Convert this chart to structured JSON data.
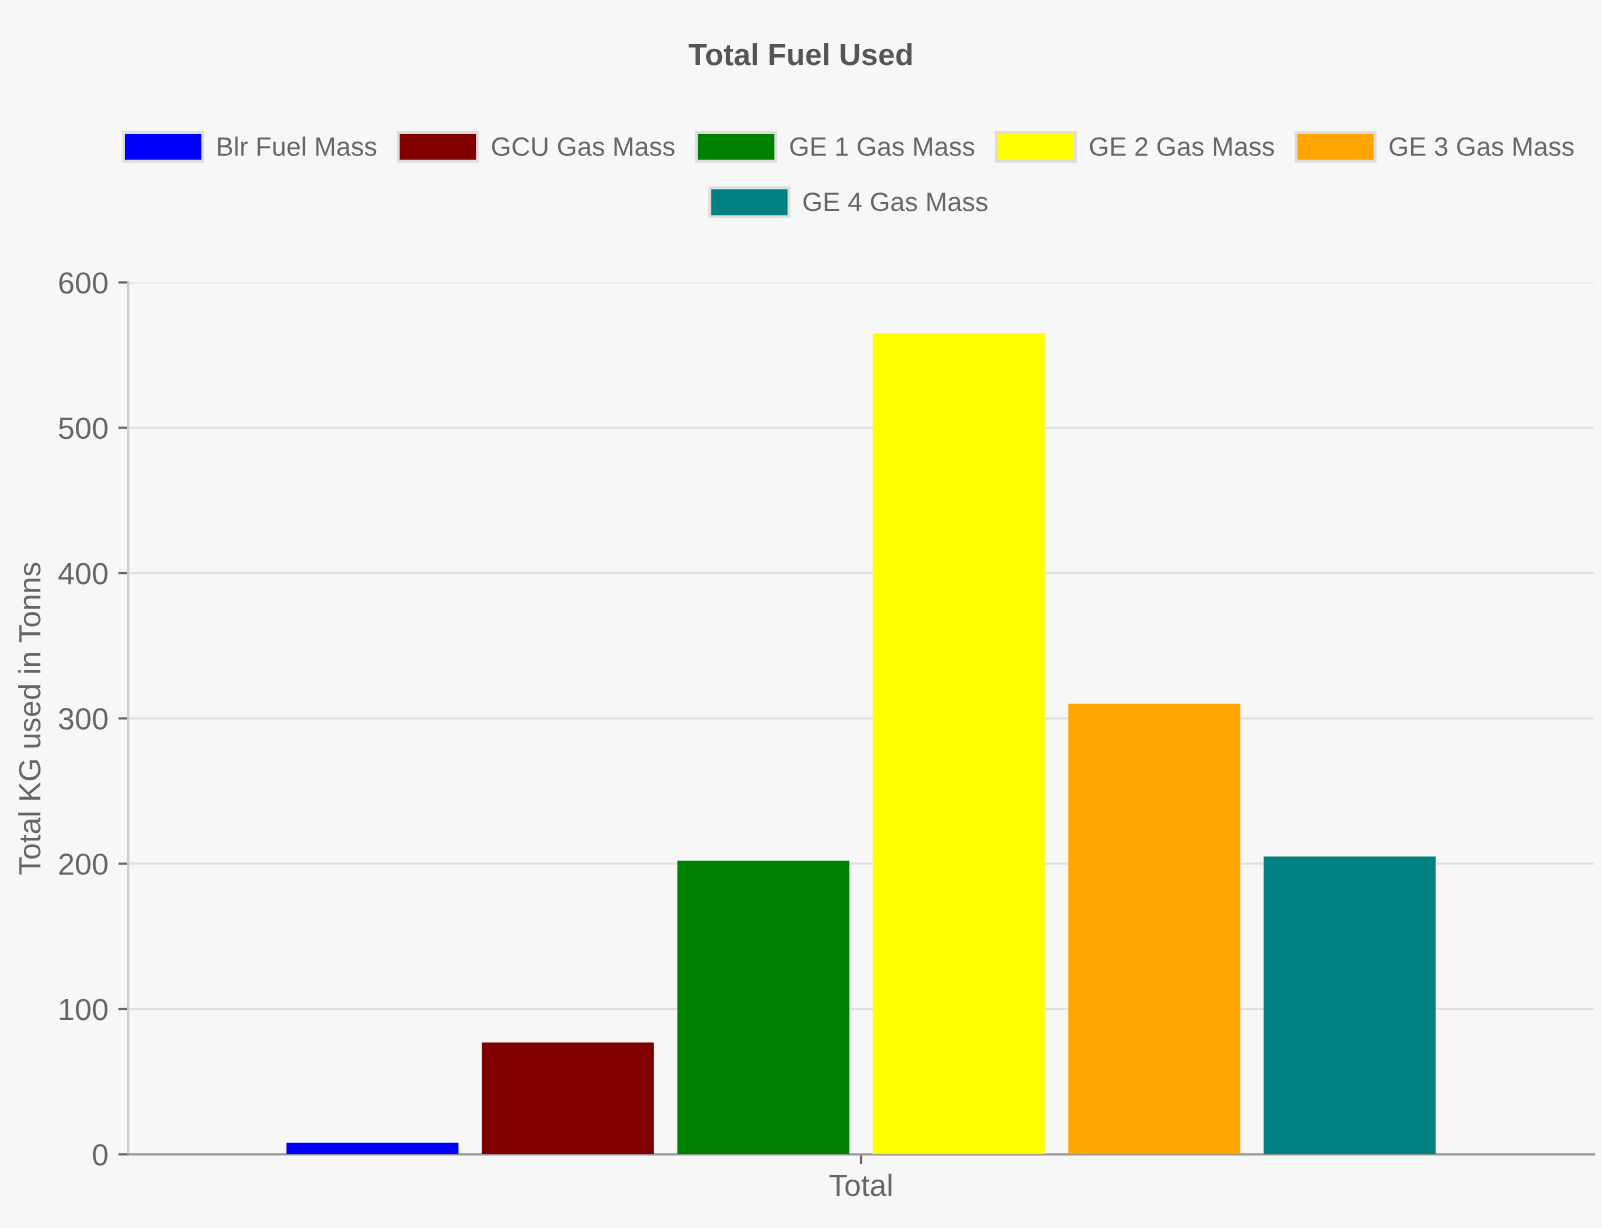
{
  "chart_data": {
    "type": "bar",
    "title": "Total Fuel Used",
    "ylabel": "Total KG used in Tonns",
    "categories": [
      "Total"
    ],
    "series": [
      {
        "name": "Blr Fuel Mass",
        "color": "#0000ff",
        "values": [
          8
        ]
      },
      {
        "name": "GCU Gas Mass",
        "color": "#800000",
        "values": [
          77
        ]
      },
      {
        "name": "GE 1 Gas Mass",
        "color": "#008000",
        "values": [
          202
        ]
      },
      {
        "name": "GE 2 Gas Mass",
        "color": "#ffff00",
        "values": [
          565
        ]
      },
      {
        "name": "GE 3 Gas Mass",
        "color": "#ffa500",
        "values": [
          310
        ]
      },
      {
        "name": "GE 4 Gas Mass",
        "color": "#008080",
        "values": [
          205
        ]
      }
    ],
    "ylim": [
      0,
      600
    ],
    "yticks": [
      0,
      100,
      200,
      300,
      400,
      500,
      600
    ],
    "grid": "y",
    "legend": "top"
  }
}
